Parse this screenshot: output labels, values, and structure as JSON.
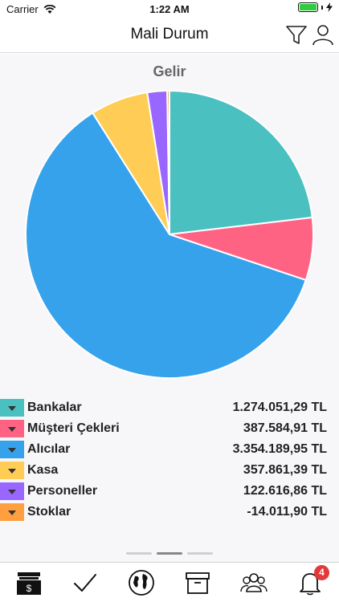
{
  "status_bar": {
    "carrier": "Carrier",
    "time": "1:22 AM"
  },
  "nav": {
    "title": "Mali Durum",
    "filter_icon": "filter-icon",
    "profile_icon": "user-icon"
  },
  "chart_data": {
    "type": "pie",
    "title": "Gelir",
    "categories": [
      "Bankalar",
      "Müşteri Çekleri",
      "Alıcılar",
      "Kasa",
      "Personeller",
      "Stoklar"
    ],
    "values": [
      1274051.29,
      387584.91,
      3354189.95,
      357861.39,
      122616.86,
      -14011.9
    ],
    "value_labels": [
      "1.274.051,29 TL",
      "387.584,91 TL",
      "3.354.189,95 TL",
      "357.861,39 TL",
      "122.616,86 TL",
      "-14.011,90 TL"
    ],
    "colors": [
      "#4bc0c0",
      "#ff6384",
      "#36a2eb",
      "#ffcd56",
      "#9966ff",
      "#ff9f40"
    ],
    "legend_placement": "bottom"
  },
  "pager": {
    "pages": 3,
    "active_index": 1
  },
  "tab_bar": {
    "items": [
      "cash-register-icon",
      "checkmark-icon",
      "globe-icon",
      "archive-box-icon",
      "group-icon",
      "bell-icon"
    ],
    "notification_badge": "4"
  }
}
